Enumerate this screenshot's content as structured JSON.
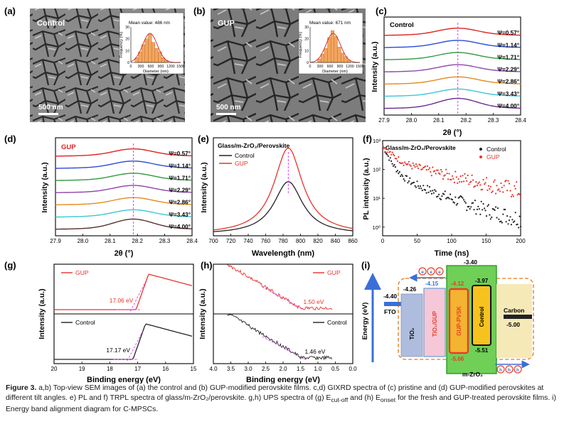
{
  "colors": {
    "control": "#222222",
    "gup": "#e8332a",
    "dash": "#e040fb",
    "tio2": "#aebdde",
    "tio2gup": "#f6c7d6",
    "gup_pvsk": "#f3b431",
    "pvsk_border": "#e83e26",
    "ctl_box": "#f6c21d",
    "carbon": "#f5e9b8",
    "mzro2": "#6fcf56",
    "mzro2_border": "#2a9a2a",
    "arrow": "#3b6fd8",
    "orange_dash": "#e8903a"
  },
  "panels": {
    "a": {
      "label": "(a)",
      "sample": "Control",
      "scale": "500 nm",
      "inset_title": "Mean value: 486 nm"
    },
    "b": {
      "label": "(b)",
      "sample": "GUP",
      "scale": "500 nm",
      "inset_title": "Mean value: 671 nm"
    },
    "c": {
      "label": "(c)",
      "sample": "Control"
    },
    "d": {
      "label": "(d)",
      "sample": "GUP"
    },
    "e": {
      "label": "(e)",
      "title": "Glass/m-ZrO₂/Perovskite"
    },
    "f": {
      "label": "(f)",
      "title": "Glass/m-ZrO₂/Perovskite"
    },
    "g": {
      "label": "(g)"
    },
    "h": {
      "label": "(h)"
    },
    "i": {
      "label": "(i)"
    }
  },
  "chart_data": [
    {
      "id": "a_inset",
      "type": "bar",
      "xlabel": "Diameter (nm)",
      "ylabel": "Frequency (%)",
      "xticks": [
        0,
        300,
        600,
        900,
        1200,
        1500
      ],
      "yticks": [
        0,
        10,
        20,
        30
      ],
      "ylim": [
        0,
        30
      ],
      "bin_centers": [
        175,
        275,
        375,
        475,
        575,
        675,
        775,
        875,
        975,
        1075
      ],
      "values": [
        4,
        9,
        15,
        20,
        24,
        17,
        12,
        9,
        4,
        2
      ]
    },
    {
      "id": "b_inset",
      "type": "bar",
      "xlabel": "Diameter (nm)",
      "ylabel": "Frequency (%)",
      "xticks": [
        0,
        300,
        600,
        900,
        1200,
        1500
      ],
      "yticks": [
        0,
        10,
        20,
        30
      ],
      "ylim": [
        0,
        30
      ],
      "bin_centers": [
        275,
        375,
        475,
        575,
        675,
        775,
        875,
        975,
        1075,
        1175
      ],
      "values": [
        3,
        7,
        12,
        21,
        27,
        22,
        13,
        8,
        5,
        2
      ]
    },
    {
      "id": "c",
      "type": "line",
      "xlabel": "2θ (°)",
      "ylabel": "Intensity (a.u.)",
      "xlim": [
        27.9,
        28.4
      ],
      "xticks": [
        27.9,
        28.0,
        28.1,
        28.2,
        28.3,
        28.4
      ],
      "peak": 28.17,
      "series": [
        {
          "name": "Ψ=4.00°",
          "color": "#6a2c91"
        },
        {
          "name": "Ψ=3.43°",
          "color": "#3cc6d8"
        },
        {
          "name": "Ψ=2.86°",
          "color": "#e48a1c"
        },
        {
          "name": "Ψ=2.29°",
          "color": "#8e44ad"
        },
        {
          "name": "Ψ=1.71°",
          "color": "#2e9b3e"
        },
        {
          "name": "Ψ=1.14°",
          "color": "#2a4bd7"
        },
        {
          "name": "Ψ=0.57°",
          "color": "#e02020"
        }
      ]
    },
    {
      "id": "d",
      "type": "line",
      "xlabel": "2θ (°)",
      "ylabel": "Intensity (a.u.)",
      "xlim": [
        27.9,
        28.4
      ],
      "xticks": [
        27.9,
        28.0,
        28.1,
        28.2,
        28.3,
        28.4
      ],
      "peak": 28.185,
      "series": [
        {
          "name": "Ψ=4.00°",
          "color": "#5a2e2e"
        },
        {
          "name": "Ψ=3.43°",
          "color": "#3cc6d8"
        },
        {
          "name": "Ψ=2.86°",
          "color": "#e48a1c"
        },
        {
          "name": "Ψ=2.29°",
          "color": "#8e44ad"
        },
        {
          "name": "Ψ=1.71°",
          "color": "#2e9b3e"
        },
        {
          "name": "Ψ=1.14°",
          "color": "#2a4bd7"
        },
        {
          "name": "Ψ=0.57°",
          "color": "#e02020"
        }
      ]
    },
    {
      "id": "e",
      "type": "line",
      "xlabel": "Wavelength (nm)",
      "ylabel": "Intensity (a.u.)",
      "xlim": [
        700,
        860
      ],
      "xticks": [
        700,
        720,
        740,
        760,
        780,
        800,
        820,
        840,
        860
      ],
      "peak": 786,
      "series": [
        {
          "name": "Control",
          "amp": 0.58
        },
        {
          "name": "GUP",
          "amp": 0.95
        }
      ]
    },
    {
      "id": "f",
      "type": "scatter",
      "xlabel": "Time (ns)",
      "ylabel": "PL intensity (a.u.)",
      "xlim": [
        0,
        200
      ],
      "xticks": [
        0,
        50,
        100,
        150,
        200
      ],
      "ylog": [
        0.5,
        1000
      ],
      "yticks": [
        "10⁰",
        "10¹",
        "10²",
        "10³"
      ],
      "series": [
        {
          "name": "Control"
        },
        {
          "name": "GUP"
        }
      ]
    },
    {
      "id": "g",
      "type": "line",
      "xlabel": "Binding energy (eV)",
      "ylabel": "Intensity (a.u.)",
      "xlim": [
        20,
        15
      ],
      "xticks": [
        20,
        19,
        18,
        17,
        16,
        15
      ],
      "series": [
        {
          "name": "GUP",
          "cutoff": "17.06 eV",
          "cutoff_value": 17.06
        },
        {
          "name": "Control",
          "cutoff": "17.17 eV",
          "cutoff_value": 17.17
        }
      ]
    },
    {
      "id": "h",
      "type": "line",
      "xlabel": "Binding energy (eV)",
      "ylabel": "Intensity (a.u.)",
      "xlim": [
        4.0,
        0.0
      ],
      "xticks": [
        4.0,
        3.5,
        3.0,
        2.5,
        2.0,
        1.5,
        1.0,
        0.5,
        0.0
      ],
      "series": [
        {
          "name": "GUP",
          "onset": "1.50 eV",
          "onset_value": 1.5
        },
        {
          "name": "Control",
          "onset": "1.46 eV",
          "onset_value": 1.46
        }
      ]
    }
  ],
  "band_diagram": {
    "ylabel": "Energy (eV)",
    "fto": {
      "label": "FTO",
      "value": "-4.40"
    },
    "tio2": {
      "label": "TiO₂",
      "value": "-4.26"
    },
    "tio2gup": {
      "label": "TiO₂/GUP",
      "value": "-4.15"
    },
    "mzro2": {
      "label": "m-ZrO₂",
      "value": "-3.40"
    },
    "gup_pvsk": {
      "label": "GUP-PVSK",
      "top": "-4.12",
      "bottom": "-5.66"
    },
    "control": {
      "label": "Control",
      "top": "-3.97",
      "bottom": "-5.51"
    },
    "carbon": {
      "label": "Carbon",
      "value": "-5.00"
    },
    "electron": "e",
    "hole": "h"
  },
  "caption": {
    "fig": "Figure 3.",
    "text": " a,b) Top-view SEM images of (a) the control and (b) GUP-modified perovskite films. c,d) GIXRD spectra of (c) pristine and (d) GUP-modified perovskites at different tilt angles. e) PL and f) TRPL spectra of glass/m-ZrO₂/perovskite. g,h) UPS spectra of (g) E",
    "sub1": "cut-off",
    "mid": " and (h) E",
    "sub2": "onset",
    "end": " for the fresh and GUP-treated perovskite films. i) Energy band alignment diagram for C-MPSCs."
  }
}
